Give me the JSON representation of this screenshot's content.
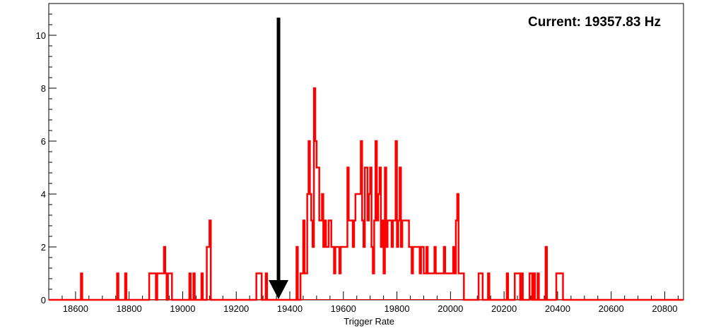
{
  "chart_data": {
    "type": "histogram",
    "title": "",
    "xlabel": "Trigger Rate",
    "ylabel": "",
    "xlim": [
      18500,
      20870
    ],
    "ylim": [
      0,
      11.2
    ],
    "x_ticks": [
      18600,
      18800,
      19000,
      19200,
      19400,
      19600,
      19800,
      20000,
      20200,
      20400,
      20600,
      20800
    ],
    "y_ticks": [
      0,
      2,
      4,
      6,
      8,
      10
    ],
    "bin_width": 5,
    "grid": false,
    "line_color": "#ff0000",
    "bins": [
      [
        18620,
        1
      ],
      [
        18755,
        1
      ],
      [
        18785,
        1
      ],
      [
        18875,
        1
      ],
      [
        18880,
        1
      ],
      [
        18885,
        1
      ],
      [
        18890,
        1
      ],
      [
        18895,
        1
      ],
      [
        18905,
        1
      ],
      [
        18910,
        1
      ],
      [
        18915,
        1
      ],
      [
        18920,
        1
      ],
      [
        18925,
        1
      ],
      [
        18930,
        2
      ],
      [
        18935,
        1
      ],
      [
        18945,
        1
      ],
      [
        18950,
        1
      ],
      [
        18955,
        1
      ],
      [
        19025,
        1
      ],
      [
        19040,
        1
      ],
      [
        19070,
        1
      ],
      [
        19090,
        2
      ],
      [
        19095,
        2
      ],
      [
        19100,
        3
      ],
      [
        19275,
        1
      ],
      [
        19280,
        1
      ],
      [
        19285,
        1
      ],
      [
        19290,
        1
      ],
      [
        19310,
        1
      ],
      [
        19425,
        2
      ],
      [
        19440,
        1
      ],
      [
        19445,
        1
      ],
      [
        19450,
        3
      ],
      [
        19455,
        1
      ],
      [
        19460,
        1
      ],
      [
        19465,
        4
      ],
      [
        19470,
        6
      ],
      [
        19475,
        4
      ],
      [
        19480,
        3
      ],
      [
        19485,
        2
      ],
      [
        19490,
        8
      ],
      [
        19495,
        6
      ],
      [
        19500,
        5
      ],
      [
        19505,
        5
      ],
      [
        19510,
        3
      ],
      [
        19515,
        3
      ],
      [
        19520,
        4
      ],
      [
        19525,
        2
      ],
      [
        19530,
        3
      ],
      [
        19535,
        2
      ],
      [
        19540,
        2
      ],
      [
        19545,
        3
      ],
      [
        19550,
        3
      ],
      [
        19555,
        2
      ],
      [
        19560,
        2
      ],
      [
        19565,
        1
      ],
      [
        19570,
        2
      ],
      [
        19575,
        2
      ],
      [
        19580,
        2
      ],
      [
        19585,
        1
      ],
      [
        19590,
        2
      ],
      [
        19595,
        2
      ],
      [
        19600,
        2
      ],
      [
        19605,
        2
      ],
      [
        19610,
        2
      ],
      [
        19615,
        5
      ],
      [
        19620,
        3
      ],
      [
        19625,
        3
      ],
      [
        19630,
        3
      ],
      [
        19635,
        2
      ],
      [
        19640,
        3
      ],
      [
        19645,
        4
      ],
      [
        19650,
        4
      ],
      [
        19655,
        4
      ],
      [
        19660,
        4
      ],
      [
        19665,
        6
      ],
      [
        19670,
        3
      ],
      [
        19675,
        2
      ],
      [
        19680,
        5
      ],
      [
        19685,
        5
      ],
      [
        19690,
        3
      ],
      [
        19695,
        4
      ],
      [
        19700,
        5
      ],
      [
        19705,
        2
      ],
      [
        19710,
        1
      ],
      [
        19715,
        3
      ],
      [
        19720,
        6
      ],
      [
        19725,
        3
      ],
      [
        19730,
        4
      ],
      [
        19735,
        5
      ],
      [
        19740,
        2
      ],
      [
        19745,
        3
      ],
      [
        19750,
        1
      ],
      [
        19755,
        5
      ],
      [
        19760,
        2
      ],
      [
        19765,
        3
      ],
      [
        19770,
        3
      ],
      [
        19775,
        3
      ],
      [
        19780,
        2
      ],
      [
        19785,
        3
      ],
      [
        19790,
        3
      ],
      [
        19795,
        6
      ],
      [
        19800,
        2
      ],
      [
        19805,
        3
      ],
      [
        19810,
        5
      ],
      [
        19815,
        2
      ],
      [
        19820,
        3
      ],
      [
        19825,
        3
      ],
      [
        19830,
        3
      ],
      [
        19835,
        3
      ],
      [
        19840,
        3
      ],
      [
        19845,
        2
      ],
      [
        19850,
        2
      ],
      [
        19855,
        1
      ],
      [
        19860,
        2
      ],
      [
        19865,
        2
      ],
      [
        19870,
        2
      ],
      [
        19875,
        2
      ],
      [
        19880,
        2
      ],
      [
        19885,
        1
      ],
      [
        19890,
        2
      ],
      [
        19895,
        2
      ],
      [
        19900,
        1
      ],
      [
        19905,
        1
      ],
      [
        19910,
        2
      ],
      [
        19915,
        1
      ],
      [
        19920,
        1
      ],
      [
        19925,
        1
      ],
      [
        19930,
        1
      ],
      [
        19935,
        1
      ],
      [
        19940,
        2
      ],
      [
        19945,
        1
      ],
      [
        19950,
        1
      ],
      [
        19955,
        1
      ],
      [
        19960,
        1
      ],
      [
        19965,
        1
      ],
      [
        19970,
        1
      ],
      [
        19975,
        2
      ],
      [
        19980,
        1
      ],
      [
        19985,
        1
      ],
      [
        19990,
        1
      ],
      [
        19995,
        1
      ],
      [
        20000,
        1
      ],
      [
        20005,
        1
      ],
      [
        20010,
        2
      ],
      [
        20015,
        1
      ],
      [
        20020,
        3
      ],
      [
        20025,
        4
      ],
      [
        20030,
        1
      ],
      [
        20035,
        1
      ],
      [
        20040,
        1
      ],
      [
        20045,
        1
      ],
      [
        20105,
        1
      ],
      [
        20110,
        1
      ],
      [
        20115,
        1
      ],
      [
        20140,
        1
      ],
      [
        20210,
        1
      ],
      [
        20240,
        1
      ],
      [
        20245,
        1
      ],
      [
        20250,
        1
      ],
      [
        20255,
        1
      ],
      [
        20265,
        1
      ],
      [
        20295,
        1
      ],
      [
        20300,
        1
      ],
      [
        20310,
        1
      ],
      [
        20325,
        1
      ],
      [
        20355,
        2
      ],
      [
        20395,
        1
      ],
      [
        20400,
        1
      ],
      [
        20405,
        1
      ],
      [
        20410,
        1
      ],
      [
        20415,
        1
      ]
    ],
    "marker": {
      "x": 19357.83,
      "label": "Current: 19357.83 Hz"
    }
  }
}
